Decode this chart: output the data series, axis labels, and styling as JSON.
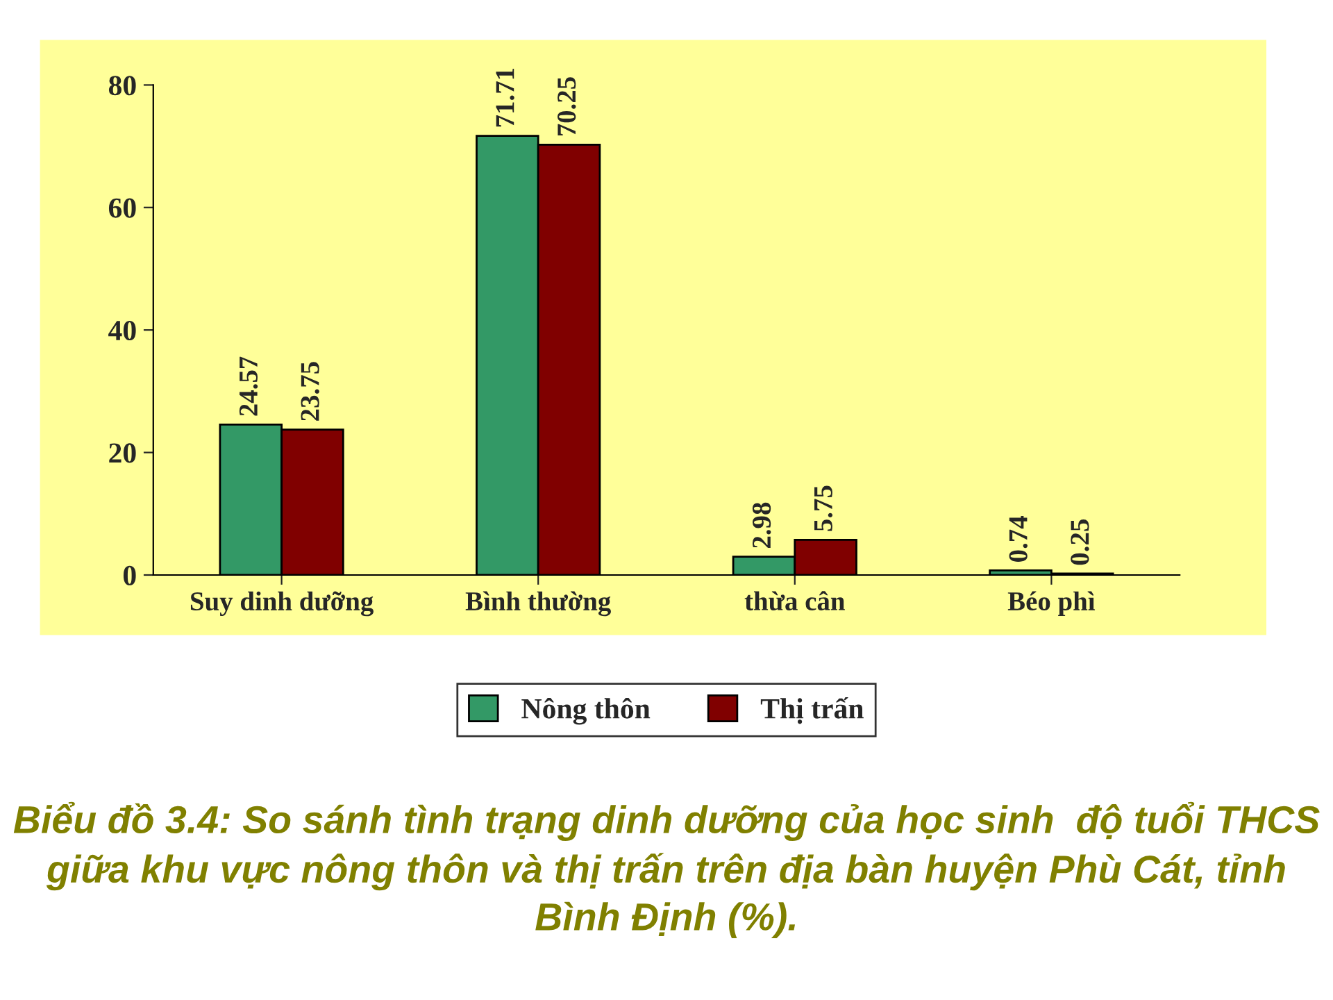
{
  "chart_data": {
    "type": "bar",
    "title": "Biểu đồ 3.4: So sánh tình trạng dinh dưỡng của học sinh  độ tuổi THCS giữa khu vực nông thôn và thị trấn trên địa bàn huyện Phù Cát, tỉnh Bình Định (%).",
    "categories": [
      "Suy dinh dưỡng",
      "Bình thường",
      "thừa cân",
      "Béo phì"
    ],
    "series": [
      {
        "name": "Nông thôn",
        "color": "#339966",
        "values": [
          24.57,
          71.71,
          2.98,
          0.74
        ]
      },
      {
        "name": "Thị trấn",
        "color": "#800000",
        "values": [
          23.75,
          70.25,
          5.75,
          0.25
        ]
      }
    ],
    "ylim": [
      0,
      80
    ],
    "yticks": [
      0,
      20,
      40,
      60,
      80
    ],
    "data_labels": true,
    "legend": "bottom",
    "grid": false
  }
}
